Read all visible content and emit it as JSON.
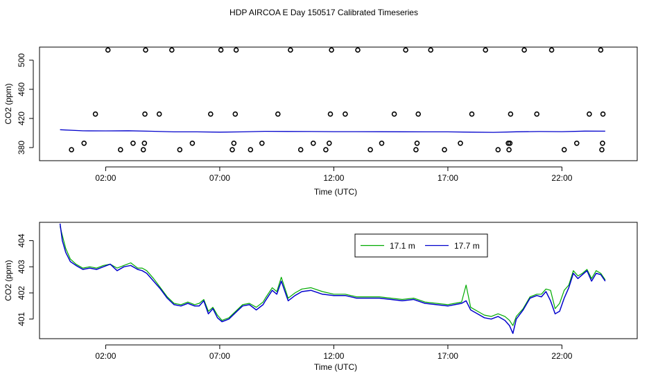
{
  "title": "HDP AIRCOA E  Day 150517  Calibrated Timeseries",
  "colors": {
    "series1": "#00aa00",
    "series2": "#0000cc",
    "flags": "#000000",
    "axes": "#000000"
  },
  "chart_data": [
    {
      "type": "scatter",
      "panel": "top",
      "title": "HDP AIRCOA E  Day 150517  Calibrated Timeseries",
      "xlabel": "Time (UTC)",
      "ylabel": "CO2 (ppm)",
      "x_ticks": [
        2,
        7,
        12,
        17,
        22
      ],
      "x_tick_labels": [
        "02:00",
        "07:00",
        "12:00",
        "17:00",
        "22:00"
      ],
      "y_ticks": [
        380,
        420,
        460,
        500
      ],
      "y_tick_labels": [
        "380",
        "420",
        "460",
        "500"
      ],
      "xlim": [
        -0.9,
        25.3
      ],
      "ylim": [
        362,
        518
      ],
      "grid": false,
      "series": [
        {
          "style": "line",
          "color": "#0000cc",
          "x": [
            0.0,
            1.0,
            2.0,
            3.0,
            4.0,
            5.0,
            6.0,
            7.0,
            8.0,
            9.0,
            10.0,
            11.0,
            12.0,
            13.0,
            14.0,
            15.0,
            16.0,
            17.0,
            18.0,
            19.0,
            20.0,
            21.0,
            22.0,
            23.0,
            23.9
          ],
          "y": [
            404.5,
            403.0,
            402.9,
            403.1,
            402.4,
            401.6,
            401.6,
            401.2,
            401.6,
            402.3,
            402.1,
            402.0,
            401.9,
            401.9,
            401.8,
            401.7,
            401.6,
            401.6,
            401.2,
            400.9,
            401.7,
            402.0,
            401.9,
            402.6,
            402.5
          ]
        },
        {
          "style": "points",
          "color": "#000000",
          "x": [
            0.5,
            1.05,
            1.55,
            2.1,
            2.65,
            3.2,
            3.65,
            3.7,
            3.72,
            3.75,
            4.35,
            4.9,
            5.25,
            5.8,
            6.6,
            7.05,
            7.55,
            7.62,
            7.68,
            7.72,
            8.35,
            8.85,
            9.55,
            10.1,
            10.55,
            11.1,
            11.65,
            11.8,
            11.85,
            11.9,
            12.5,
            13.05,
            13.6,
            14.1,
            14.65,
            15.15,
            15.6,
            15.65,
            15.7,
            16.25,
            16.85,
            17.55,
            18.05,
            18.65,
            19.2,
            19.65,
            19.68,
            19.72,
            19.75,
            20.35,
            20.9,
            21.55,
            22.1,
            22.65,
            23.2,
            23.7,
            23.75,
            23.78,
            23.8
          ],
          "y": [
            377,
            386,
            426,
            514,
            377,
            386,
            377,
            386,
            426,
            514,
            426,
            514,
            377,
            386,
            426,
            514,
            377,
            386,
            426,
            514,
            377,
            386,
            426,
            514,
            377,
            386,
            377,
            386,
            426,
            514,
            426,
            514,
            377,
            386,
            426,
            514,
            377,
            386,
            426,
            514,
            377,
            386,
            426,
            514,
            377,
            386,
            377,
            386,
            426,
            514,
            426,
            514,
            377,
            386,
            426,
            514,
            377,
            386,
            426
          ]
        }
      ]
    },
    {
      "type": "line",
      "panel": "bottom",
      "xlabel": "Time (UTC)",
      "ylabel": "CO2 (ppm)",
      "x_ticks": [
        2,
        7,
        12,
        17,
        22
      ],
      "x_tick_labels": [
        "02:00",
        "07:00",
        "12:00",
        "17:00",
        "22:00"
      ],
      "y_ticks": [
        401,
        402,
        403,
        404
      ],
      "y_tick_labels": [
        "401",
        "402",
        "403",
        "404"
      ],
      "xlim": [
        -0.9,
        25.3
      ],
      "ylim": [
        400.25,
        404.7
      ],
      "grid": false,
      "legend_position": "top-right",
      "x": [
        0.0,
        0.1,
        0.25,
        0.45,
        0.7,
        1.0,
        1.3,
        1.6,
        1.9,
        2.2,
        2.5,
        2.8,
        3.1,
        3.4,
        3.6,
        3.8,
        4.1,
        4.4,
        4.7,
        5.0,
        5.3,
        5.6,
        5.9,
        6.1,
        6.3,
        6.5,
        6.7,
        6.9,
        7.1,
        7.4,
        7.7,
        8.0,
        8.3,
        8.6,
        8.9,
        9.0,
        9.3,
        9.5,
        9.7,
        10.0,
        10.3,
        10.6,
        11.0,
        11.5,
        12.0,
        12.5,
        13.0,
        13.5,
        14.0,
        14.5,
        15.0,
        15.5,
        16.0,
        16.5,
        17.0,
        17.3,
        17.6,
        17.8,
        18.0,
        18.3,
        18.6,
        18.9,
        19.2,
        19.5,
        19.7,
        19.85,
        20.0,
        20.3,
        20.6,
        20.9,
        21.1,
        21.3,
        21.5,
        21.7,
        21.9,
        22.1,
        22.3,
        22.5,
        22.7,
        22.9,
        23.1,
        23.3,
        23.5,
        23.7,
        23.9
      ],
      "series": [
        {
          "name": "17.1 m",
          "color": "#00aa00",
          "values": [
            404.55,
            404.2,
            403.7,
            403.3,
            403.1,
            402.95,
            403.0,
            402.95,
            403.05,
            403.1,
            402.95,
            403.05,
            403.15,
            402.95,
            402.95,
            402.85,
            402.55,
            402.2,
            401.85,
            401.6,
            401.55,
            401.65,
            401.55,
            401.6,
            401.75,
            401.3,
            401.45,
            401.15,
            400.95,
            401.05,
            401.3,
            401.55,
            401.6,
            401.45,
            401.65,
            401.8,
            402.2,
            402.05,
            402.6,
            401.8,
            402.0,
            402.15,
            402.2,
            402.05,
            401.95,
            401.95,
            401.85,
            401.85,
            401.85,
            401.8,
            401.75,
            401.8,
            401.65,
            401.6,
            401.55,
            401.6,
            401.65,
            402.3,
            401.45,
            401.3,
            401.15,
            401.1,
            401.2,
            401.1,
            400.95,
            400.75,
            401.1,
            401.4,
            401.85,
            401.95,
            401.95,
            402.15,
            402.1,
            401.4,
            401.6,
            402.1,
            402.3,
            402.85,
            402.65,
            402.75,
            402.9,
            402.55,
            402.85,
            402.75,
            402.5
          ]
        },
        {
          "name": "17.7 m",
          "color": "#0000cc",
          "values": [
            404.65,
            404.0,
            403.55,
            403.2,
            403.05,
            402.9,
            402.95,
            402.9,
            403.0,
            403.1,
            402.85,
            403.0,
            403.05,
            402.9,
            402.85,
            402.75,
            402.45,
            402.15,
            401.8,
            401.55,
            401.5,
            401.6,
            401.5,
            401.5,
            401.7,
            401.2,
            401.4,
            401.05,
            400.9,
            401.0,
            401.25,
            401.5,
            401.55,
            401.35,
            401.55,
            401.7,
            402.1,
            401.95,
            402.45,
            401.7,
            401.9,
            402.05,
            402.1,
            401.95,
            401.9,
            401.9,
            401.8,
            401.8,
            401.8,
            401.75,
            401.7,
            401.75,
            401.6,
            401.55,
            401.5,
            401.55,
            401.6,
            401.7,
            401.35,
            401.2,
            401.05,
            401.0,
            401.1,
            400.95,
            400.75,
            400.45,
            401.0,
            401.35,
            401.8,
            401.9,
            401.85,
            402.05,
            401.7,
            401.2,
            401.3,
            401.8,
            402.2,
            402.75,
            402.55,
            402.7,
            402.85,
            402.45,
            402.75,
            402.7,
            402.45
          ]
        }
      ],
      "legend": [
        "17.1 m",
        "17.7 m"
      ]
    }
  ]
}
